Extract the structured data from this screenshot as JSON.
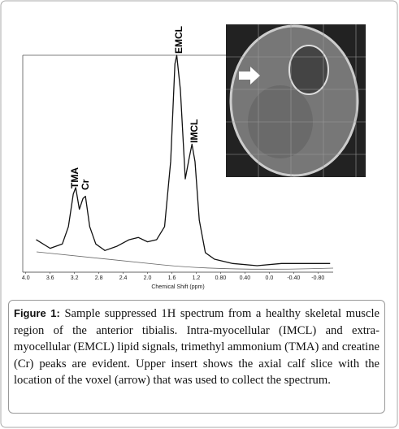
{
  "chart_data": {
    "type": "line",
    "x_label": "Chemical Shift (ppm)",
    "annotations": [
      "EMCL",
      "IMCL",
      "TMA",
      "Cr"
    ],
    "x": [
      3.83,
      3.6,
      3.4,
      3.3,
      3.22,
      3.18,
      3.12,
      3.06,
      3.02,
      2.95,
      2.85,
      2.7,
      2.5,
      2.3,
      2.15,
      2.0,
      1.85,
      1.72,
      1.62,
      1.55,
      1.52,
      1.46,
      1.38,
      1.32,
      1.27,
      1.22,
      1.15,
      1.05,
      0.9,
      0.6,
      0.2,
      -0.2,
      -0.6,
      -1.0
    ],
    "series": [
      {
        "color": "#111111",
        "values": [
          15,
          11,
          13,
          21,
          36,
          39,
          29,
          34,
          35,
          21,
          13,
          10,
          12,
          15,
          16,
          14,
          15,
          21,
          51,
          96,
          100,
          84,
          43,
          52,
          59,
          51,
          24,
          9,
          6,
          4,
          3,
          4,
          4,
          4
        ]
      }
    ],
    "xlim": [
      4.05,
      -1.05
    ],
    "ylim": [
      0,
      100
    ],
    "xticks": [
      {
        "value": 4.0,
        "label": "4.0"
      },
      3.6,
      3.2,
      2.8,
      2.4,
      {
        "value": 2.0,
        "label": "2.0"
      },
      1.6,
      1.2,
      {
        "value": 0.8,
        "label": "0.80"
      },
      {
        "value": 0.4,
        "label": "0.40"
      },
      {
        "value": 0,
        "label": "0.0"
      },
      {
        "value": -0.4,
        "label": "-0.40"
      },
      {
        "value": -0.8,
        "label": "-0.80"
      }
    ]
  },
  "caption": {
    "label": "Figure 1:",
    "text": "Sample suppressed 1H spectrum from a healthy skeletal muscle region of the anterior tibialis. Intra-myocellular (IMCL) and extra-myocellular (EMCL) lipid signals, trimethyl ammonium (TMA) and creatine (Cr) peaks are evident. Upper insert shows the axial calf slice with the location of the voxel (arrow) that was used to collect the spectrum."
  }
}
